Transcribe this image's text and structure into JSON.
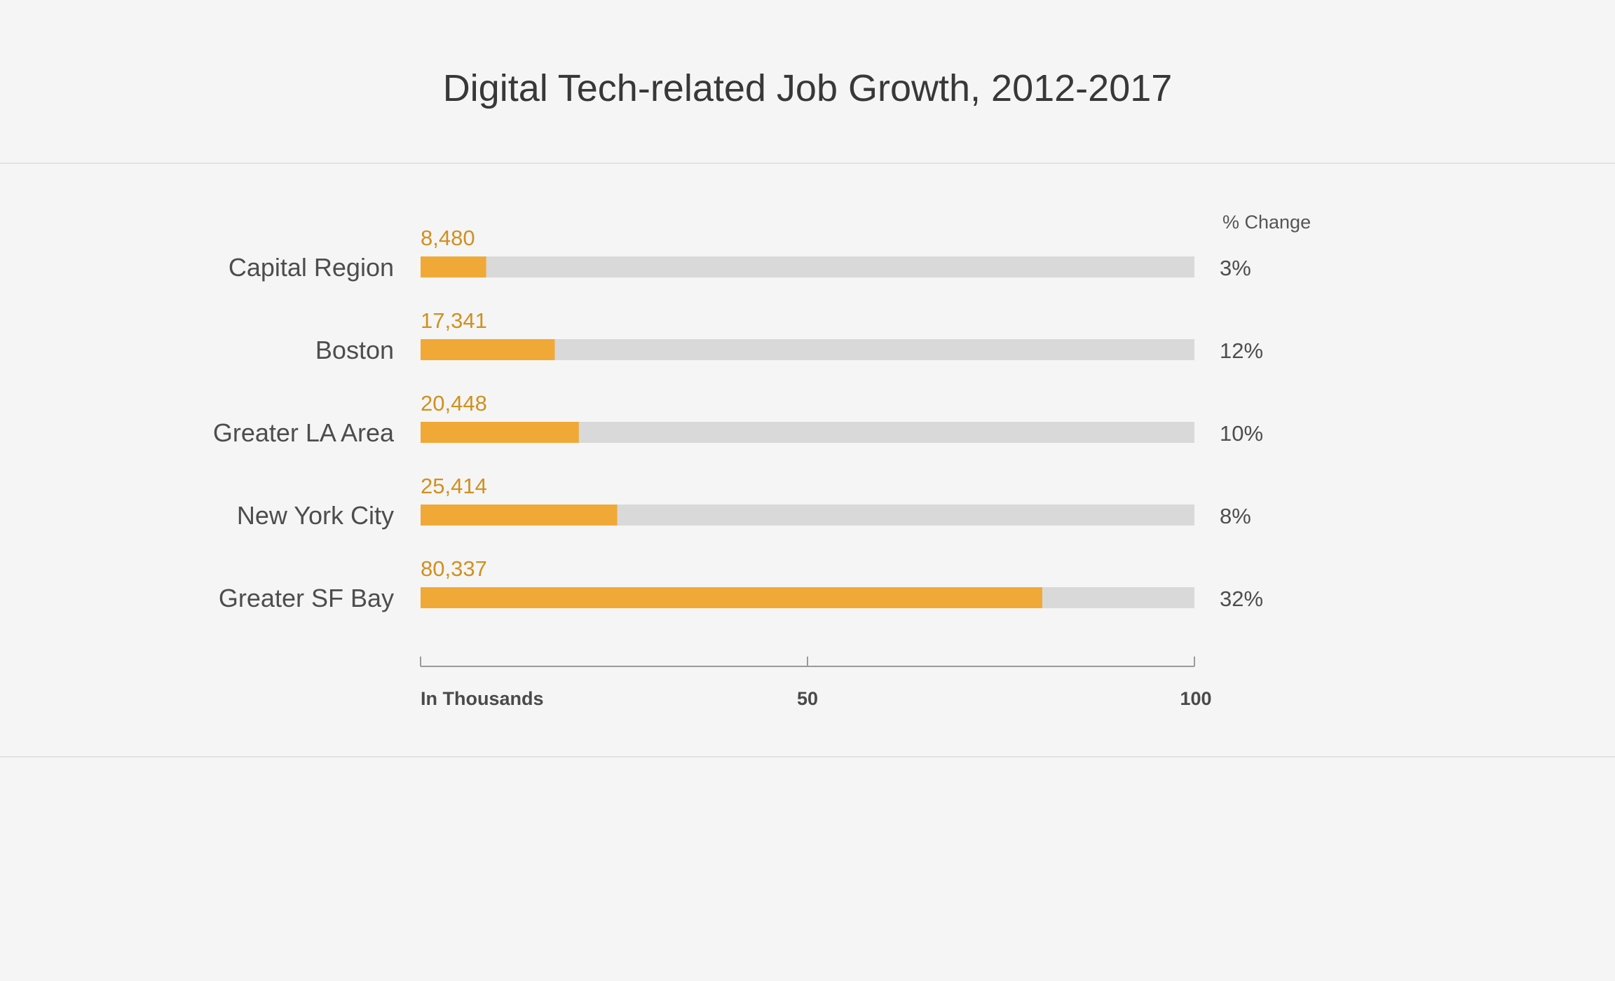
{
  "chart_data": {
    "type": "bar",
    "orientation": "horizontal",
    "title": "Digital Tech-related Job Growth, 2012-2017",
    "categories": [
      "Capital Region",
      "Boston",
      "Greater LA Area",
      "New York City",
      "Greater SF Bay"
    ],
    "values": [
      8480,
      17341,
      20448,
      25414,
      80337
    ],
    "value_labels": [
      "8,480",
      "17,341",
      "20,448",
      "25,414",
      "80,337"
    ],
    "pct_change_header": "% Change",
    "pct_change": [
      "3%",
      "12%",
      "10%",
      "8%",
      "32%"
    ],
    "xlabel": "In Thousands",
    "xlim": [
      0,
      100
    ],
    "x_ticks": [
      {
        "value": 0,
        "label": "In Thousands"
      },
      {
        "value": 50,
        "label": "50"
      },
      {
        "value": 100,
        "label": "100"
      }
    ],
    "grid": false,
    "colors": {
      "bar": "#f0a937",
      "track": "#d9d9d9",
      "value_text": "#d1901f"
    }
  }
}
